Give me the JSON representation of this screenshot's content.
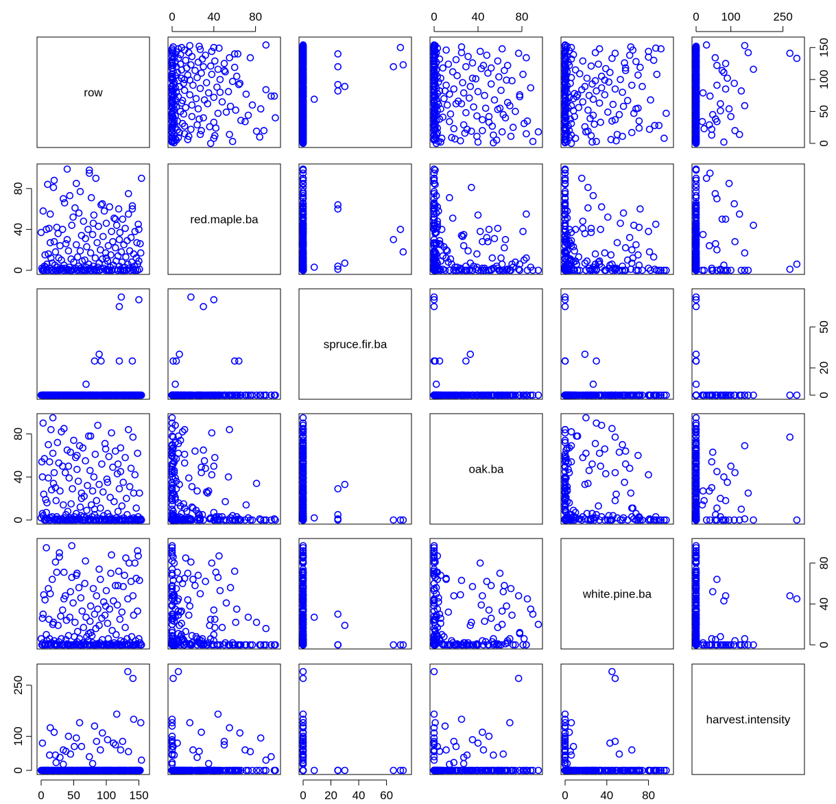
{
  "chart_data": {
    "type": "scatter-matrix",
    "variables": [
      "row",
      "red.maple.ba",
      "spruce.fir.ba",
      "oak.ba",
      "white.pine.ba",
      "harvest.intensity"
    ],
    "ranges": [
      [
        0,
        160
      ],
      [
        0,
        100
      ],
      [
        0,
        75
      ],
      [
        0,
        95
      ],
      [
        0,
        100
      ],
      [
        0,
        300
      ]
    ],
    "ticks": [
      [
        0,
        50,
        100,
        150
      ],
      [
        0,
        40,
        80
      ],
      [
        0,
        20,
        40,
        60
      ],
      [
        0,
        40,
        80
      ],
      [
        0,
        40,
        80
      ],
      [
        0,
        100,
        250
      ]
    ],
    "alt_ticks": [
      [
        0,
        50,
        100,
        150
      ],
      [
        0,
        40,
        80
      ],
      [
        0,
        20,
        50
      ],
      [
        0,
        40,
        80
      ],
      [
        0,
        40,
        80
      ],
      [
        0,
        100,
        250
      ]
    ],
    "marker_color": "#0000ff",
    "grid": false,
    "rows": [
      [
        0,
        37,
        0,
        2,
        6,
        0
      ],
      [
        1,
        2,
        0,
        54,
        0,
        0
      ],
      [
        2,
        0,
        0,
        6,
        26,
        0
      ],
      [
        3,
        58,
        0,
        4,
        2,
        0
      ],
      [
        4,
        2,
        0,
        24,
        49,
        0
      ],
      [
        5,
        4,
        0,
        57,
        0,
        0
      ],
      [
        6,
        15,
        0,
        0,
        44,
        0
      ],
      [
        7,
        3,
        0,
        19,
        0,
        0
      ],
      [
        8,
        40,
        0,
        7,
        10,
        0
      ],
      [
        9,
        6,
        0,
        16,
        4,
        0
      ],
      [
        10,
        84,
        0,
        1,
        0,
        0
      ],
      [
        11,
        16,
        0,
        39,
        1,
        0
      ],
      [
        12,
        41,
        0,
        0,
        25,
        0
      ],
      [
        13,
        2,
        0,
        54,
        6,
        45
      ],
      [
        14,
        27,
        0,
        2,
        50,
        0
      ],
      [
        15,
        12,
        0,
        84,
        0,
        0
      ],
      [
        16,
        0,
        0,
        28,
        2,
        0
      ],
      [
        17,
        7,
        0,
        3,
        64,
        0
      ],
      [
        18,
        0,
        0,
        62,
        20,
        0
      ],
      [
        19,
        81,
        0,
        34,
        22,
        0
      ],
      [
        20,
        28,
        0,
        44,
        4,
        112
      ],
      [
        21,
        5,
        0,
        0,
        1,
        0
      ],
      [
        22,
        18,
        0,
        1,
        81,
        0
      ],
      [
        23,
        0,
        0,
        18,
        0,
        23
      ],
      [
        24,
        42,
        0,
        3,
        71,
        0
      ],
      [
        25,
        3,
        0,
        72,
        0,
        0
      ],
      [
        26,
        36,
        0,
        1,
        19,
        0
      ],
      [
        27,
        12,
        0,
        53,
        3,
        0
      ],
      [
        28,
        1,
        0,
        0,
        86,
        0
      ],
      [
        29,
        24,
        0,
        27,
        0,
        38
      ],
      [
        30,
        1,
        0,
        0,
        28,
        0
      ],
      [
        31,
        10,
        0,
        82,
        6,
        0
      ],
      [
        32,
        2,
        0,
        1,
        0,
        0
      ],
      [
        33,
        40,
        0,
        50,
        34,
        0
      ],
      [
        34,
        0,
        0,
        14,
        0,
        18
      ],
      [
        35,
        5,
        0,
        2,
        71,
        0
      ],
      [
        36,
        66,
        0,
        0,
        0,
        0
      ],
      [
        37,
        2,
        0,
        44,
        48,
        0
      ],
      [
        38,
        26,
        0,
        5,
        5,
        56
      ],
      [
        39,
        0,
        0,
        0,
        24,
        0
      ],
      [
        40,
        30,
        0,
        65,
        1,
        0
      ],
      [
        41,
        1,
        0,
        8,
        0,
        0
      ],
      [
        42,
        19,
        0,
        0,
        9,
        0
      ],
      [
        43,
        3,
        0,
        39,
        0,
        0
      ],
      [
        44,
        73,
        0,
        2,
        27,
        0
      ],
      [
        45,
        0,
        0,
        63,
        52,
        48
      ],
      [
        46,
        11,
        0,
        15,
        0,
        0
      ],
      [
        47,
        44,
        0,
        1,
        66,
        0
      ],
      [
        48,
        0,
        0,
        29,
        0,
        0
      ],
      [
        49,
        52,
        0,
        0,
        41,
        0
      ],
      [
        50,
        8,
        0,
        74,
        0,
        0
      ],
      [
        51,
        1,
        0,
        3,
        8,
        70
      ],
      [
        52,
        61,
        0,
        0,
        22,
        0
      ],
      [
        53,
        2,
        0,
        58,
        1,
        0
      ],
      [
        54,
        25,
        0,
        6,
        68,
        0
      ],
      [
        55,
        0,
        0,
        47,
        3,
        0
      ],
      [
        56,
        13,
        0,
        1,
        13,
        0
      ],
      [
        57,
        4,
        0,
        36,
        0,
        0
      ],
      [
        58,
        56,
        0,
        2,
        56,
        0
      ],
      [
        59,
        0,
        0,
        69,
        6,
        140
      ],
      [
        60,
        19,
        0,
        12,
        0,
        0
      ],
      [
        61,
        2,
        0,
        4,
        46,
        0
      ],
      [
        62,
        34,
        0,
        25,
        0,
        0
      ],
      [
        63,
        9,
        0,
        0,
        33,
        0
      ],
      [
        64,
        1,
        0,
        67,
        2,
        0
      ],
      [
        65,
        48,
        0,
        3,
        17,
        0
      ],
      [
        66,
        0,
        0,
        22,
        0,
        0
      ],
      [
        67,
        10,
        0,
        0,
        60,
        0
      ],
      [
        68,
        31,
        0,
        55,
        1,
        0
      ],
      [
        69,
        3,
        8,
        2,
        27,
        0
      ],
      [
        70,
        23,
        0,
        9,
        8,
        0
      ],
      [
        71,
        0,
        0,
        32,
        0,
        0
      ],
      [
        72,
        40,
        0,
        0,
        4,
        0
      ],
      [
        73,
        6,
        0,
        78,
        11,
        0
      ],
      [
        74,
        98,
        0,
        1,
        0,
        0
      ],
      [
        75,
        2,
        0,
        46,
        23,
        0
      ],
      [
        76,
        17,
        0,
        0,
        38,
        0
      ],
      [
        77,
        71,
        0,
        14,
        0,
        0
      ],
      [
        78,
        0,
        0,
        3,
        9,
        0
      ],
      [
        79,
        35,
        0,
        27,
        2,
        20
      ],
      [
        80,
        4,
        0,
        0,
        55,
        0
      ],
      [
        81,
        54,
        0,
        40,
        0,
        0
      ],
      [
        82,
        1,
        25,
        5,
        30,
        0
      ],
      [
        83,
        12,
        0,
        61,
        0,
        0
      ],
      [
        84,
        90,
        0,
        0,
        16,
        0
      ],
      [
        85,
        0,
        0,
        18,
        48,
        85
      ],
      [
        86,
        27,
        0,
        2,
        1,
        0
      ],
      [
        87,
        3,
        0,
        88,
        35,
        0
      ],
      [
        88,
        43,
        0,
        0,
        0,
        0
      ],
      [
        89,
        7,
        30,
        33,
        19,
        0
      ],
      [
        90,
        0,
        0,
        0,
        2,
        0
      ],
      [
        91,
        20,
        0,
        11,
        64,
        60
      ],
      [
        92,
        64,
        25,
        1,
        0,
        0
      ],
      [
        93,
        1,
        0,
        52,
        26,
        0
      ],
      [
        94,
        11,
        0,
        0,
        5,
        0
      ],
      [
        95,
        33,
        0,
        26,
        0,
        0
      ],
      [
        96,
        2,
        0,
        4,
        42,
        0
      ],
      [
        97,
        58,
        0,
        0,
        0,
        0
      ],
      [
        98,
        6,
        0,
        71,
        29,
        0
      ],
      [
        99,
        17,
        0,
        1,
        1,
        0
      ],
      [
        100,
        46,
        0,
        0,
        53,
        0
      ],
      [
        101,
        1,
        0,
        38,
        0,
        0
      ],
      [
        102,
        9,
        0,
        6,
        21,
        0
      ],
      [
        103,
        24,
        0,
        0,
        6,
        0
      ],
      [
        104,
        0,
        0,
        59,
        0,
        0
      ],
      [
        105,
        62,
        0,
        3,
        35,
        0
      ],
      [
        106,
        3,
        0,
        21,
        1,
        0
      ],
      [
        107,
        15,
        0,
        0,
        70,
        0
      ],
      [
        108,
        38,
        0,
        81,
        0,
        0
      ],
      [
        109,
        0,
        0,
        1,
        14,
        0
      ],
      [
        110,
        28,
        0,
        49,
        0,
        0
      ],
      [
        111,
        5,
        0,
        0,
        43,
        80
      ],
      [
        112,
        51,
        0,
        17,
        2,
        0
      ],
      [
        113,
        1,
        0,
        0,
        0,
        0
      ],
      [
        114,
        22,
        0,
        64,
        58,
        0
      ],
      [
        115,
        9,
        0,
        2,
        10,
        0
      ],
      [
        116,
        44,
        0,
        0,
        0,
        165
      ],
      [
        117,
        0,
        0,
        43,
        39,
        0
      ],
      [
        118,
        14,
        0,
        8,
        1,
        0
      ],
      [
        119,
        60,
        0,
        0,
        72,
        0
      ],
      [
        120,
        4,
        25,
        29,
        0,
        0
      ],
      [
        121,
        37,
        0,
        1,
        25,
        0
      ],
      [
        122,
        1,
        0,
        67,
        4,
        0
      ],
      [
        123,
        18,
        72,
        0,
        0,
        0
      ],
      [
        124,
        8,
        0,
        13,
        32,
        0
      ],
      [
        125,
        50,
        0,
        0,
        0,
        85
      ],
      [
        126,
        0,
        0,
        35,
        57,
        0
      ],
      [
        127,
        25,
        0,
        2,
        3,
        0
      ],
      [
        128,
        3,
        0,
        0,
        0,
        0
      ],
      [
        129,
        41,
        0,
        58,
        17,
        0
      ],
      [
        130,
        13,
        0,
        0,
        85,
        0
      ],
      [
        131,
        0,
        0,
        20,
        0,
        0
      ],
      [
        132,
        29,
        0,
        5,
        6,
        0
      ],
      [
        133,
        6,
        0,
        0,
        45,
        290
      ],
      [
        134,
        55,
        0,
        84,
        0,
        0
      ],
      [
        135,
        2,
        0,
        0,
        80,
        0
      ],
      [
        136,
        19,
        0,
        31,
        2,
        0
      ],
      [
        137,
        0,
        0,
        1,
        0,
        0
      ],
      [
        138,
        32,
        0,
        48,
        62,
        0
      ],
      [
        139,
        8,
        0,
        0,
        8,
        0
      ],
      [
        140,
        63,
        0,
        0,
        0,
        0
      ],
      [
        141,
        1,
        0,
        77,
        48,
        270
      ],
      [
        142,
        16,
        0,
        2,
        29,
        0
      ],
      [
        143,
        4,
        0,
        0,
        0,
        0
      ],
      [
        144,
        38,
        0,
        42,
        80,
        0
      ],
      [
        145,
        0,
        0,
        1,
        4,
        0
      ],
      [
        146,
        12,
        0,
        11,
        65,
        0
      ],
      [
        147,
        27,
        0,
        0,
        1,
        0
      ],
      [
        148,
        6,
        0,
        62,
        33,
        0
      ],
      [
        149,
        45,
        0,
        3,
        87,
        0
      ],
      [
        150,
        9,
        0,
        0,
        6,
        0
      ],
      [
        151,
        1,
        0,
        25,
        63,
        0
      ],
      [
        152,
        26,
        0,
        0,
        2,
        0
      ],
      [
        153,
        17,
        0,
        1,
        0,
        140
      ],
      [
        5,
        0,
        0,
        0,
        0,
        0
      ],
      [
        25,
        0,
        0,
        0,
        0,
        0
      ],
      [
        45,
        0,
        0,
        0,
        0,
        0
      ],
      [
        65,
        0,
        0,
        0,
        0,
        0
      ],
      [
        85,
        0,
        0,
        0,
        0,
        0
      ],
      [
        105,
        0,
        0,
        0,
        0,
        0
      ],
      [
        125,
        0,
        0,
        0,
        0,
        0
      ],
      [
        145,
        0,
        0,
        0,
        0,
        0
      ],
      [
        3,
        0,
        0,
        90,
        30,
        0
      ],
      [
        11,
        0,
        0,
        70,
        55,
        0
      ],
      [
        18,
        0,
        0,
        95,
        20,
        0
      ],
      [
        35,
        0,
        0,
        85,
        45,
        0
      ],
      [
        55,
        0,
        0,
        60,
        70,
        0
      ],
      [
        76,
        0,
        0,
        78,
        12,
        0
      ],
      [
        99,
        0,
        0,
        66,
        38,
        0
      ],
      [
        118,
        0,
        0,
        52,
        58,
        0
      ],
      [
        8,
        0,
        0,
        0,
        95,
        0
      ],
      [
        28,
        0,
        0,
        0,
        90,
        0
      ],
      [
        47,
        0,
        0,
        0,
        97,
        0
      ],
      [
        68,
        0,
        0,
        0,
        82,
        0
      ],
      [
        89,
        0,
        0,
        0,
        74,
        0
      ],
      [
        108,
        0,
        0,
        0,
        88,
        0
      ],
      [
        128,
        0,
        0,
        0,
        68,
        0
      ],
      [
        148,
        0,
        0,
        0,
        92,
        0
      ],
      [
        14,
        55,
        0,
        0,
        0,
        125
      ],
      [
        34,
        70,
        0,
        0,
        0,
        60
      ],
      [
        54,
        85,
        0,
        0,
        0,
        95
      ],
      [
        74,
        95,
        0,
        0,
        0,
        40
      ],
      [
        94,
        65,
        0,
        0,
        0,
        110
      ],
      [
        114,
        50,
        0,
        0,
        0,
        75
      ],
      [
        134,
        75,
        0,
        0,
        0,
        55
      ],
      [
        154,
        90,
        0,
        0,
        0,
        30
      ],
      [
        2,
        0,
        0,
        40,
        0,
        80
      ],
      [
        22,
        0,
        0,
        30,
        0,
        45
      ],
      [
        42,
        0,
        0,
        50,
        0,
        100
      ],
      [
        62,
        0,
        0,
        20,
        0,
        70
      ],
      [
        82,
        0,
        0,
        10,
        0,
        130
      ],
      [
        102,
        0,
        0,
        35,
        0,
        90
      ],
      [
        122,
        0,
        0,
        45,
        0,
        60
      ],
      [
        142,
        0,
        0,
        25,
        0,
        150
      ],
      [
        150,
        40,
        70,
        0,
        0,
        0
      ],
      [
        120,
        30,
        65,
        0,
        0,
        0
      ],
      [
        140,
        60,
        25,
        0,
        0,
        0
      ],
      [
        20,
        88,
        0,
        0,
        0,
        0
      ],
      [
        40,
        99,
        0,
        0,
        0,
        0
      ],
      [
        60,
        77,
        0,
        0,
        0,
        0
      ],
      [
        80,
        46,
        0,
        0,
        0,
        0
      ],
      [
        100,
        12,
        0,
        0,
        0,
        0
      ]
    ]
  }
}
